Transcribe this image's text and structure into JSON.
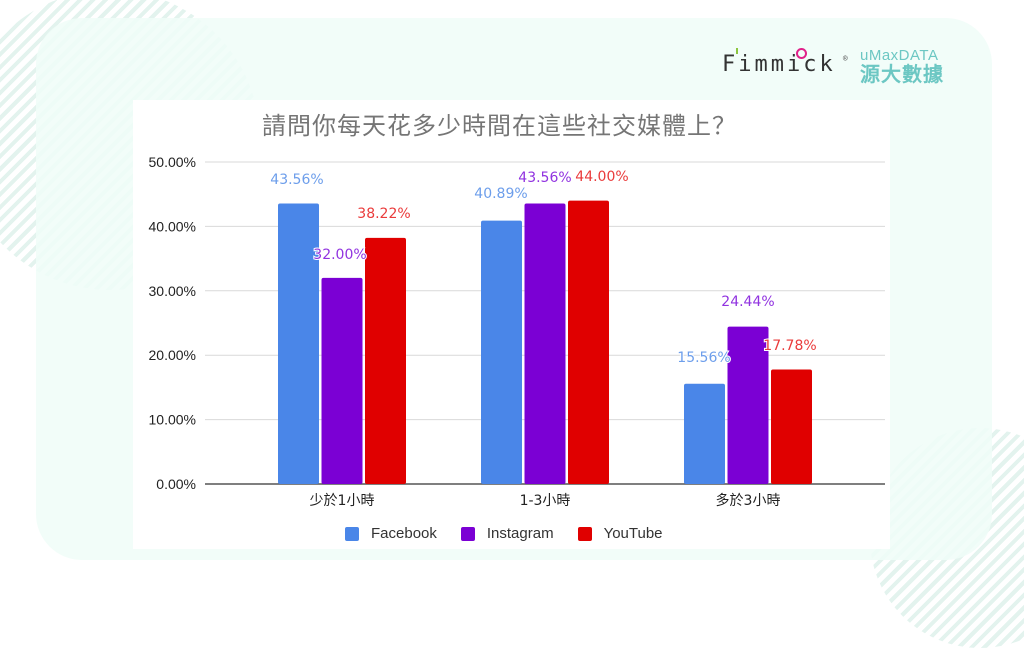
{
  "branding": {
    "fimmick_logo": "Fimmick",
    "fimmick_reg": "®",
    "umax_logo_en": "uMaxDATA",
    "umax_logo_zh": "源大數據"
  },
  "colors": {
    "facebook": "#4a86e8",
    "instagram": "#7b00d4",
    "youtube": "#e00000",
    "facebook_label": "#6d9eeb",
    "instagram_label": "#9133e0",
    "youtube_label": "#ea3b3b",
    "accent_mint": "#6cc7c3"
  },
  "chart_data": {
    "type": "bar",
    "title": "請問你每天花多少時間在這些社交媒體上？",
    "xlabel": "",
    "ylabel": "",
    "categories": [
      "少於1小時",
      "1-3小時",
      "多於3小時"
    ],
    "series": [
      {
        "name": "Facebook",
        "values": [
          43.56,
          40.89,
          15.56
        ],
        "labels": [
          "43.56%",
          "40.89%",
          "15.56%"
        ]
      },
      {
        "name": "Instagram",
        "values": [
          32.0,
          43.56,
          24.44
        ],
        "labels": [
          "32.00%",
          "43.56%",
          "24.44%"
        ]
      },
      {
        "name": "YouTube",
        "values": [
          38.22,
          44.0,
          17.78
        ],
        "labels": [
          "38.22%",
          "44.00%",
          "17.78%"
        ]
      }
    ],
    "yticks": [
      "0.00%",
      "10.00%",
      "20.00%",
      "30.00%",
      "40.00%",
      "50.00%"
    ],
    "ylim": [
      0,
      50
    ],
    "grid": true,
    "legend_position": "bottom"
  }
}
